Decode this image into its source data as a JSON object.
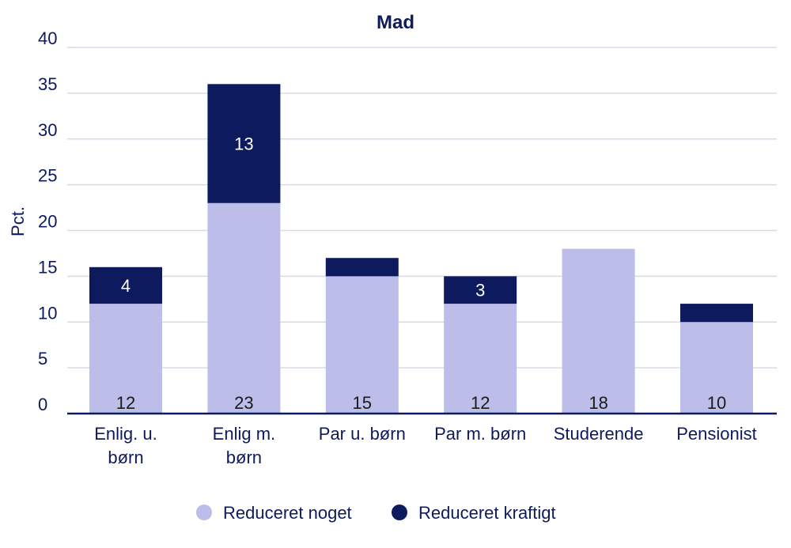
{
  "chart_data": {
    "type": "bar",
    "stacked": true,
    "title": "Mad",
    "xlabel": "",
    "ylabel": "Pct.",
    "ylim": [
      0,
      40
    ],
    "yticks": [
      0,
      5,
      10,
      15,
      20,
      25,
      30,
      35,
      40
    ],
    "grid": true,
    "legend_position": "bottom",
    "categories": [
      [
        "Enlig. u.",
        "børn"
      ],
      [
        "Enlig m.",
        "børn"
      ],
      [
        "Par u. børn"
      ],
      [
        "Par m. børn"
      ],
      [
        "Studerende"
      ],
      [
        "Pensionist"
      ]
    ],
    "series": [
      {
        "name": "Reduceret noget",
        "color": "#bcbde9",
        "label_color": "#1a1a1a",
        "values": [
          12,
          23,
          15,
          12,
          18,
          10
        ],
        "labels": [
          "12",
          "23",
          "15",
          "12",
          "18",
          "10"
        ]
      },
      {
        "name": "Reduceret kraftigt",
        "color": "#0d1a5e",
        "label_color": "#ffffff",
        "values": [
          4,
          13,
          2,
          3,
          0,
          2
        ],
        "labels": [
          "4",
          "13",
          "",
          "3",
          "",
          ""
        ]
      }
    ],
    "colors": {
      "text": "#0d1a5e",
      "grid": "#d9d9ec",
      "axis": "#0d1a5e"
    }
  }
}
